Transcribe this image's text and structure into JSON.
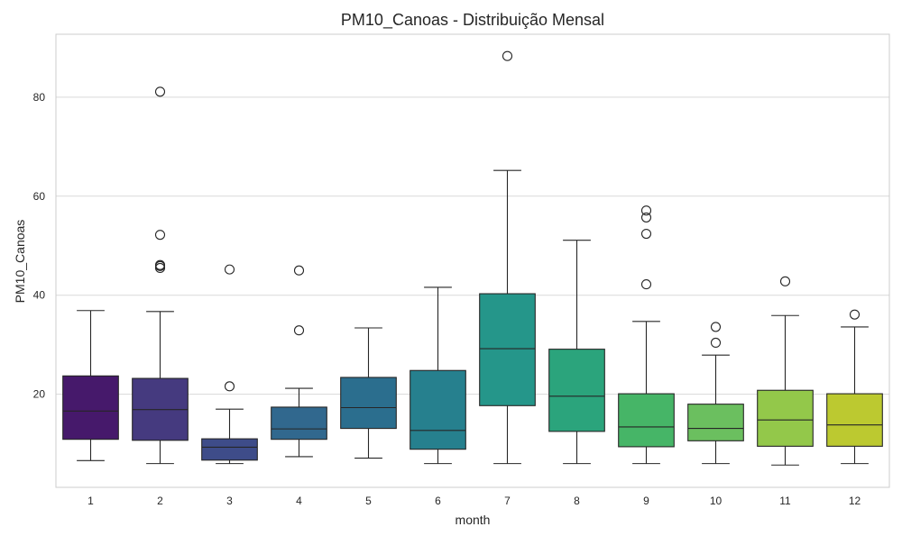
{
  "chart_data": {
    "type": "boxplot",
    "title": "PM10_Canoas - Distribuição Mensal",
    "xlabel": "month",
    "ylabel": "PM10_Canoas",
    "ylim": [
      1.2,
      92.7
    ],
    "yticks": [
      20,
      40,
      60,
      80
    ],
    "grid": "horizontal",
    "categories": [
      "1",
      "2",
      "3",
      "4",
      "5",
      "6",
      "7",
      "8",
      "9",
      "10",
      "11",
      "12"
    ],
    "colors": [
      "#46196b",
      "#453a7f",
      "#3e4c89",
      "#31688e",
      "#2b6e8e",
      "#26808e",
      "#25968a",
      "#2ba47c",
      "#46b567",
      "#6bbf5f",
      "#93c84a",
      "#bcc930"
    ],
    "boxes": [
      {
        "month": "1",
        "whisker_low": 6.6,
        "q1": 10.9,
        "median": 16.6,
        "q3": 23.7,
        "whisker_high": 36.9,
        "outliers": []
      },
      {
        "month": "2",
        "whisker_low": 6.0,
        "q1": 10.7,
        "median": 16.9,
        "q3": 23.2,
        "whisker_high": 36.7,
        "outliers": [
          45.5,
          45.9,
          46.1,
          52.2,
          81.1
        ]
      },
      {
        "month": "3",
        "whisker_low": 6.0,
        "q1": 6.7,
        "median": 9.3,
        "q3": 11.0,
        "whisker_high": 17.0,
        "outliers": [
          21.6,
          45.2
        ]
      },
      {
        "month": "4",
        "whisker_low": 7.4,
        "q1": 10.9,
        "median": 13.0,
        "q3": 17.4,
        "whisker_high": 21.2,
        "outliers": [
          32.9,
          45.0
        ]
      },
      {
        "month": "5",
        "whisker_low": 7.1,
        "q1": 13.1,
        "median": 17.3,
        "q3": 23.4,
        "whisker_high": 33.4,
        "outliers": []
      },
      {
        "month": "6",
        "whisker_low": 6.0,
        "q1": 8.9,
        "median": 12.7,
        "q3": 24.8,
        "whisker_high": 41.6,
        "outliers": []
      },
      {
        "month": "7",
        "whisker_low": 6.0,
        "q1": 17.7,
        "median": 29.2,
        "q3": 40.3,
        "whisker_high": 65.2,
        "outliers": [
          88.3
        ]
      },
      {
        "month": "8",
        "whisker_low": 6.0,
        "q1": 12.5,
        "median": 19.6,
        "q3": 29.1,
        "whisker_high": 51.1,
        "outliers": []
      },
      {
        "month": "9",
        "whisker_low": 6.0,
        "q1": 9.4,
        "median": 13.4,
        "q3": 20.1,
        "whisker_high": 34.7,
        "outliers": [
          42.2,
          52.4,
          55.7,
          57.1
        ]
      },
      {
        "month": "10",
        "whisker_low": 6.0,
        "q1": 10.6,
        "median": 13.1,
        "q3": 18.0,
        "whisker_high": 27.9,
        "outliers": [
          30.4,
          33.6
        ]
      },
      {
        "month": "11",
        "whisker_low": 5.7,
        "q1": 9.5,
        "median": 14.8,
        "q3": 20.8,
        "whisker_high": 35.9,
        "outliers": [
          42.8
        ]
      },
      {
        "month": "12",
        "whisker_low": 6.0,
        "q1": 9.5,
        "median": 13.8,
        "q3": 20.1,
        "whisker_high": 33.6,
        "outliers": [
          36.1
        ]
      }
    ]
  }
}
